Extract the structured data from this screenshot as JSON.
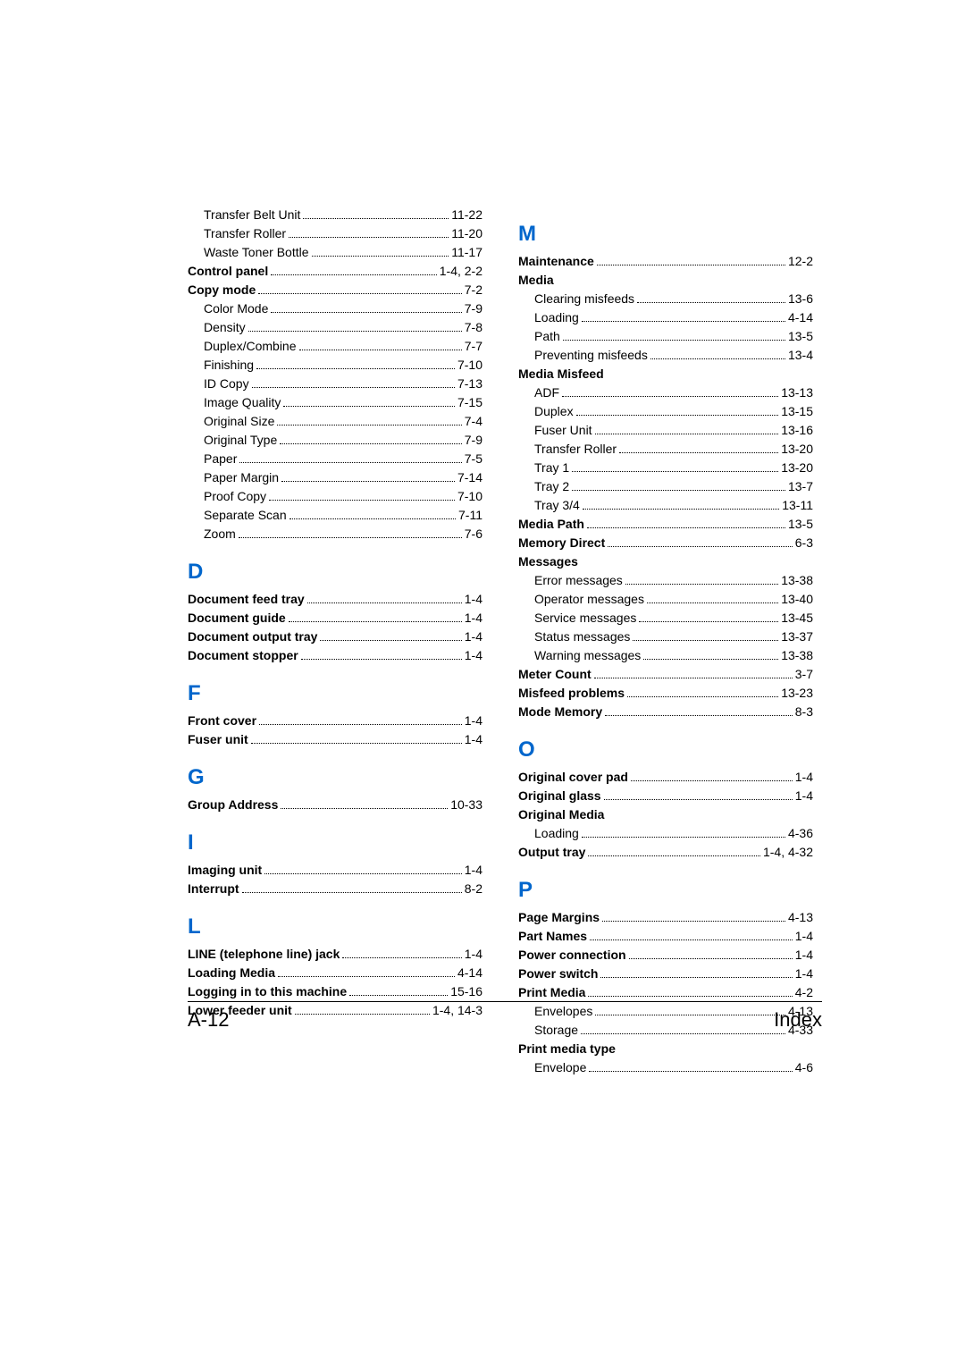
{
  "footer": {
    "left": "A-12",
    "right": "Index"
  },
  "left_column": [
    {
      "type": "entry",
      "indent": true,
      "bold": false,
      "label": "Transfer Belt Unit",
      "page": "11-22"
    },
    {
      "type": "entry",
      "indent": true,
      "bold": false,
      "label": "Transfer Roller",
      "page": "11-20"
    },
    {
      "type": "entry",
      "indent": true,
      "bold": false,
      "label": "Waste Toner Bottle",
      "page": "11-17"
    },
    {
      "type": "entry",
      "indent": false,
      "bold": true,
      "label": "Control panel",
      "page": "1-4, 2-2"
    },
    {
      "type": "entry",
      "indent": false,
      "bold": true,
      "label": "Copy mode",
      "page": "7-2"
    },
    {
      "type": "entry",
      "indent": true,
      "bold": false,
      "label": "Color Mode",
      "page": "7-9"
    },
    {
      "type": "entry",
      "indent": true,
      "bold": false,
      "label": "Density",
      "page": "7-8"
    },
    {
      "type": "entry",
      "indent": true,
      "bold": false,
      "label": "Duplex/Combine",
      "page": "7-7"
    },
    {
      "type": "entry",
      "indent": true,
      "bold": false,
      "label": "Finishing",
      "page": "7-10"
    },
    {
      "type": "entry",
      "indent": true,
      "bold": false,
      "label": "ID Copy",
      "page": "7-13"
    },
    {
      "type": "entry",
      "indent": true,
      "bold": false,
      "label": "Image Quality",
      "page": "7-15"
    },
    {
      "type": "entry",
      "indent": true,
      "bold": false,
      "label": "Original Size",
      "page": "7-4"
    },
    {
      "type": "entry",
      "indent": true,
      "bold": false,
      "label": "Original Type",
      "page": "7-9"
    },
    {
      "type": "entry",
      "indent": true,
      "bold": false,
      "label": "Paper",
      "page": "7-5"
    },
    {
      "type": "entry",
      "indent": true,
      "bold": false,
      "label": "Paper Margin",
      "page": "7-14"
    },
    {
      "type": "entry",
      "indent": true,
      "bold": false,
      "label": "Proof Copy",
      "page": "7-10"
    },
    {
      "type": "entry",
      "indent": true,
      "bold": false,
      "label": "Separate Scan",
      "page": "7-11"
    },
    {
      "type": "entry",
      "indent": true,
      "bold": false,
      "label": "Zoom",
      "page": "7-6"
    },
    {
      "type": "letter",
      "label": "D"
    },
    {
      "type": "entry",
      "indent": false,
      "bold": true,
      "label": "Document feed tray",
      "page": "1-4"
    },
    {
      "type": "entry",
      "indent": false,
      "bold": true,
      "label": "Document guide",
      "page": "1-4"
    },
    {
      "type": "entry",
      "indent": false,
      "bold": true,
      "label": "Document output tray",
      "page": "1-4"
    },
    {
      "type": "entry",
      "indent": false,
      "bold": true,
      "label": "Document stopper",
      "page": "1-4"
    },
    {
      "type": "letter",
      "label": "F"
    },
    {
      "type": "entry",
      "indent": false,
      "bold": true,
      "label": "Front cover",
      "page": "1-4"
    },
    {
      "type": "entry",
      "indent": false,
      "bold": true,
      "label": "Fuser unit",
      "page": "1-4"
    },
    {
      "type": "letter",
      "label": "G"
    },
    {
      "type": "entry",
      "indent": false,
      "bold": true,
      "label": "Group Address",
      "page": "10-33"
    },
    {
      "type": "letter",
      "label": "I"
    },
    {
      "type": "entry",
      "indent": false,
      "bold": true,
      "label": "Imaging unit",
      "page": "1-4"
    },
    {
      "type": "entry",
      "indent": false,
      "bold": true,
      "label": "Interrupt",
      "page": "8-2"
    },
    {
      "type": "letter",
      "label": "L"
    },
    {
      "type": "entry",
      "indent": false,
      "bold": true,
      "label": "LINE (telephone line) jack",
      "page": "1-4"
    },
    {
      "type": "entry",
      "indent": false,
      "bold": true,
      "label": "Loading Media",
      "page": "4-14"
    },
    {
      "type": "entry",
      "indent": false,
      "bold": true,
      "label": "Logging in to this machine",
      "page": "15-16"
    },
    {
      "type": "entry",
      "indent": false,
      "bold": true,
      "label": "Lower feeder unit",
      "page": "1-4, 14-3"
    }
  ],
  "right_column": [
    {
      "type": "letter",
      "label": "M"
    },
    {
      "type": "entry",
      "indent": false,
      "bold": true,
      "label": "Maintenance",
      "page": "12-2"
    },
    {
      "type": "header",
      "indent": false,
      "bold": true,
      "label": "Media"
    },
    {
      "type": "entry",
      "indent": true,
      "bold": false,
      "label": "Clearing misfeeds",
      "page": "13-6"
    },
    {
      "type": "entry",
      "indent": true,
      "bold": false,
      "label": "Loading",
      "page": "4-14"
    },
    {
      "type": "entry",
      "indent": true,
      "bold": false,
      "label": "Path",
      "page": "13-5"
    },
    {
      "type": "entry",
      "indent": true,
      "bold": false,
      "label": "Preventing misfeeds",
      "page": "13-4"
    },
    {
      "type": "header",
      "indent": false,
      "bold": true,
      "label": "Media Misfeed"
    },
    {
      "type": "entry",
      "indent": true,
      "bold": false,
      "label": "ADF",
      "page": "13-13"
    },
    {
      "type": "entry",
      "indent": true,
      "bold": false,
      "label": "Duplex",
      "page": "13-15"
    },
    {
      "type": "entry",
      "indent": true,
      "bold": false,
      "label": "Fuser Unit",
      "page": "13-16"
    },
    {
      "type": "entry",
      "indent": true,
      "bold": false,
      "label": "Transfer Roller",
      "page": "13-20"
    },
    {
      "type": "entry",
      "indent": true,
      "bold": false,
      "label": "Tray 1",
      "page": "13-20"
    },
    {
      "type": "entry",
      "indent": true,
      "bold": false,
      "label": "Tray 2",
      "page": "13-7"
    },
    {
      "type": "entry",
      "indent": true,
      "bold": false,
      "label": "Tray 3/4",
      "page": "13-11"
    },
    {
      "type": "entry",
      "indent": false,
      "bold": true,
      "label": "Media Path",
      "page": "13-5"
    },
    {
      "type": "entry",
      "indent": false,
      "bold": true,
      "label": "Memory Direct",
      "page": "6-3"
    },
    {
      "type": "header",
      "indent": false,
      "bold": true,
      "label": "Messages"
    },
    {
      "type": "entry",
      "indent": true,
      "bold": false,
      "label": "Error messages",
      "page": "13-38"
    },
    {
      "type": "entry",
      "indent": true,
      "bold": false,
      "label": "Operator messages",
      "page": "13-40"
    },
    {
      "type": "entry",
      "indent": true,
      "bold": false,
      "label": "Service messages",
      "page": "13-45"
    },
    {
      "type": "entry",
      "indent": true,
      "bold": false,
      "label": "Status messages",
      "page": "13-37"
    },
    {
      "type": "entry",
      "indent": true,
      "bold": false,
      "label": "Warning messages",
      "page": "13-38"
    },
    {
      "type": "entry",
      "indent": false,
      "bold": true,
      "label": "Meter Count",
      "page": "3-7"
    },
    {
      "type": "entry",
      "indent": false,
      "bold": true,
      "label": "Misfeed problems",
      "page": "13-23"
    },
    {
      "type": "entry",
      "indent": false,
      "bold": true,
      "label": "Mode Memory",
      "page": "8-3"
    },
    {
      "type": "letter",
      "label": "O"
    },
    {
      "type": "entry",
      "indent": false,
      "bold": true,
      "label": "Original cover pad",
      "page": "1-4"
    },
    {
      "type": "entry",
      "indent": false,
      "bold": true,
      "label": "Original glass",
      "page": "1-4"
    },
    {
      "type": "header",
      "indent": false,
      "bold": true,
      "label": "Original Media"
    },
    {
      "type": "entry",
      "indent": true,
      "bold": false,
      "label": "Loading",
      "page": "4-36"
    },
    {
      "type": "entry",
      "indent": false,
      "bold": true,
      "label": "Output tray",
      "page": "1-4, 4-32"
    },
    {
      "type": "letter",
      "label": "P"
    },
    {
      "type": "entry",
      "indent": false,
      "bold": true,
      "label": "Page Margins",
      "page": "4-13"
    },
    {
      "type": "entry",
      "indent": false,
      "bold": true,
      "label": "Part Names",
      "page": "1-4"
    },
    {
      "type": "entry",
      "indent": false,
      "bold": true,
      "label": "Power connection",
      "page": "1-4"
    },
    {
      "type": "entry",
      "indent": false,
      "bold": true,
      "label": "Power switch",
      "page": "1-4"
    },
    {
      "type": "entry",
      "indent": false,
      "bold": true,
      "label": "Print Media",
      "page": "4-2"
    },
    {
      "type": "entry",
      "indent": true,
      "bold": false,
      "label": "Envelopes",
      "page": "4-13"
    },
    {
      "type": "entry",
      "indent": true,
      "bold": false,
      "label": "Storage",
      "page": "4-33"
    },
    {
      "type": "header",
      "indent": false,
      "bold": true,
      "label": "Print media type"
    },
    {
      "type": "entry",
      "indent": true,
      "bold": false,
      "label": "Envelope",
      "page": "4-6"
    }
  ]
}
